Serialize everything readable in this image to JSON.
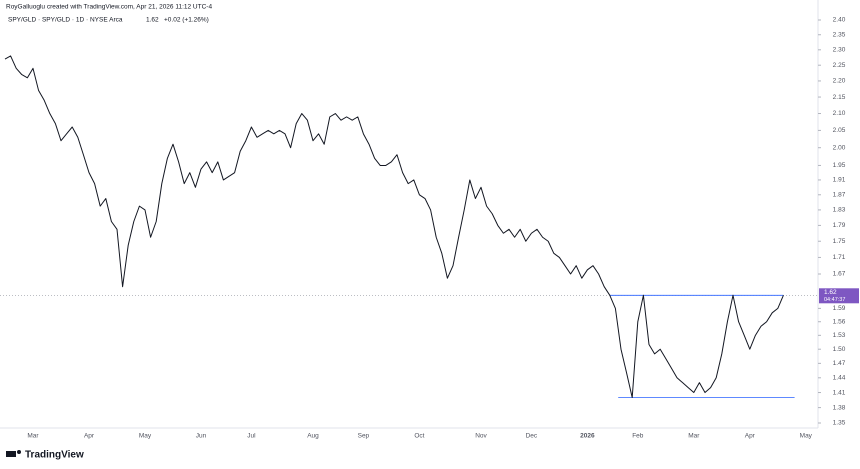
{
  "chart_data": {
    "type": "line",
    "credit": "RoyGalluoglu created with TradingView.com, Apr 21, 2026 11:12 UTC-4",
    "symbol": "SPY/GLD · SPY/GLD · 1D · NYSE Arca",
    "last": "1.62",
    "change": "+0.02 (+1.26%)",
    "brand": "TradingView",
    "log_scale": true,
    "last_value": 1.62,
    "countdown": "04:47:37",
    "levels": [
      1.62,
      1.4
    ],
    "categories": [
      null,
      null,
      null,
      null,
      null,
      "Mar",
      null,
      null,
      null,
      null,
      null,
      null,
      null,
      null,
      null,
      "Apr",
      null,
      null,
      null,
      null,
      null,
      null,
      null,
      null,
      null,
      "May",
      null,
      null,
      null,
      null,
      null,
      null,
      null,
      null,
      null,
      "Jun",
      null,
      null,
      null,
      null,
      null,
      null,
      null,
      null,
      "Jul",
      null,
      null,
      null,
      null,
      null,
      null,
      null,
      null,
      null,
      null,
      "Aug",
      null,
      null,
      null,
      null,
      null,
      null,
      null,
      null,
      "Sep",
      null,
      null,
      null,
      null,
      null,
      null,
      null,
      null,
      null,
      "Oct",
      null,
      null,
      null,
      null,
      null,
      null,
      null,
      null,
      null,
      null,
      "Nov",
      null,
      null,
      null,
      null,
      null,
      null,
      null,
      null,
      "Dec",
      null,
      null,
      null,
      null,
      null,
      null,
      null,
      null,
      null,
      "2026",
      null,
      null,
      null,
      null,
      null,
      null,
      null,
      null,
      "Feb",
      null,
      null,
      null,
      null,
      null,
      null,
      null,
      null,
      null,
      "Mar",
      null,
      null,
      null,
      null,
      null,
      null,
      null,
      null,
      null,
      "Apr",
      null,
      null,
      null,
      null,
      null,
      null,
      null,
      null,
      null,
      "May",
      null,
      null
    ],
    "series": [
      {
        "name": "SPY/GLD",
        "color": "#131722",
        "values": [
          2.27,
          2.28,
          2.24,
          2.22,
          2.21,
          2.24,
          2.17,
          2.14,
          2.1,
          2.07,
          2.02,
          2.04,
          2.06,
          2.03,
          1.98,
          1.93,
          1.9,
          1.84,
          1.86,
          1.8,
          1.78,
          1.64,
          1.74,
          1.8,
          1.84,
          1.83,
          1.76,
          1.8,
          1.9,
          1.97,
          2.01,
          1.96,
          1.9,
          1.93,
          1.89,
          1.94,
          1.96,
          1.93,
          1.96,
          1.91,
          1.92,
          1.93,
          1.99,
          2.02,
          2.06,
          2.03,
          2.04,
          2.05,
          2.04,
          2.05,
          2.04,
          2.0,
          2.07,
          2.1,
          2.08,
          2.02,
          2.04,
          2.01,
          2.09,
          2.1,
          2.08,
          2.09,
          2.08,
          2.09,
          2.04,
          2.01,
          1.97,
          1.95,
          1.95,
          1.96,
          1.98,
          1.93,
          1.9,
          1.91,
          1.87,
          1.86,
          1.83,
          1.76,
          1.72,
          1.66,
          1.69,
          1.76,
          1.83,
          1.91,
          1.86,
          1.89,
          1.84,
          1.82,
          1.79,
          1.77,
          1.78,
          1.76,
          1.78,
          1.75,
          1.77,
          1.78,
          1.76,
          1.75,
          1.72,
          1.71,
          1.69,
          1.67,
          1.69,
          1.66,
          1.68,
          1.69,
          1.67,
          1.64,
          1.62,
          1.59,
          1.5,
          1.45,
          1.4,
          1.56,
          1.62,
          1.51,
          1.49,
          1.5,
          1.48,
          1.46,
          1.44,
          1.43,
          1.42,
          1.41,
          1.43,
          1.41,
          1.42,
          1.44,
          1.49,
          1.56,
          1.62,
          1.56,
          1.53,
          1.5,
          1.53,
          1.55,
          1.56,
          1.58,
          1.59,
          1.62,
          null,
          null,
          null,
          null,
          null,
          null
        ]
      }
    ],
    "ylim": [
      1.35,
      2.4
    ],
    "yticks": [
      {
        "value": 2.4,
        "label": "2.40"
      },
      2.35,
      {
        "value": 2.3,
        "label": "2.30"
      },
      2.25,
      {
        "value": 2.2,
        "label": "2.20"
      },
      2.15,
      {
        "value": 2.1,
        "label": "2.10"
      },
      2.05,
      {
        "value": 2.0,
        "label": "2.00"
      },
      1.95,
      1.91,
      1.87,
      1.83,
      1.79,
      1.75,
      1.71,
      1.67,
      1.59,
      1.56,
      1.53,
      {
        "value": 1.5,
        "label": "1.50"
      },
      1.47,
      1.44,
      1.41,
      1.38,
      1.35
    ]
  }
}
